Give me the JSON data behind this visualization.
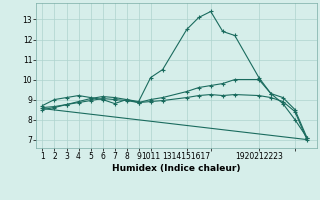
{
  "title": "",
  "xlabel": "Humidex (Indice chaleur)",
  "bg_color": "#d6eeea",
  "grid_color": "#aed4ce",
  "line_color": "#1a6b5e",
  "yticks": [
    7,
    8,
    9,
    10,
    11,
    12,
    13
  ],
  "ylim": [
    6.6,
    13.8
  ],
  "xlim": [
    0.5,
    23.8
  ],
  "line1_x": [
    1,
    2,
    3,
    4,
    5,
    6,
    7,
    8,
    9,
    10,
    11,
    13,
    14,
    15,
    16,
    17,
    19,
    20,
    21,
    22,
    23
  ],
  "line1_y": [
    8.7,
    9.0,
    9.1,
    9.2,
    9.1,
    9.0,
    8.8,
    9.0,
    8.9,
    10.1,
    10.5,
    12.5,
    13.1,
    13.4,
    12.4,
    12.2,
    10.1,
    9.3,
    8.8,
    8.0,
    7.1
  ],
  "line2_x": [
    1,
    2,
    3,
    4,
    5,
    6,
    7,
    8,
    9,
    10,
    11,
    13,
    14,
    15,
    16,
    17,
    19,
    20,
    21,
    22,
    23
  ],
  "line2_y": [
    8.5,
    8.6,
    8.75,
    8.9,
    9.05,
    9.15,
    9.1,
    9.0,
    8.85,
    9.0,
    9.1,
    9.4,
    9.6,
    9.7,
    9.8,
    10.0,
    10.0,
    9.3,
    9.1,
    8.5,
    7.1
  ],
  "line3_x": [
    1,
    2,
    3,
    4,
    5,
    6,
    7,
    8,
    9,
    10,
    11,
    13,
    14,
    15,
    16,
    17,
    19,
    20,
    21,
    22,
    23
  ],
  "line3_y": [
    8.6,
    8.65,
    8.75,
    8.85,
    8.95,
    9.05,
    9.0,
    8.95,
    8.85,
    8.9,
    8.95,
    9.1,
    9.2,
    9.25,
    9.2,
    9.25,
    9.2,
    9.1,
    8.9,
    8.4,
    7.0
  ],
  "line4_x": [
    1,
    23
  ],
  "line4_y": [
    8.55,
    7.0
  ],
  "xtick_positions": [
    1,
    2,
    3,
    4,
    5,
    6,
    7,
    8,
    9,
    10,
    13,
    15,
    19,
    22
  ],
  "xtick_labels": [
    "1",
    "2",
    "3",
    "4",
    "5",
    "6",
    "7",
    "8",
    "9",
    "1011",
    "1314151617",
    "",
    "1920212223",
    ""
  ]
}
